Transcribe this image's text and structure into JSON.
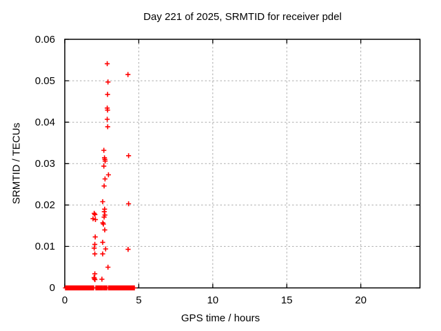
{
  "figure": {
    "background": "#ffffff"
  },
  "chart_data": {
    "type": "scatter",
    "title": "Day 221 of 2025, SRMTID for receiver pdel",
    "xlabel": "GPS time / hours",
    "ylabel": "SRMTID / TECUs",
    "xlim": [
      0,
      24
    ],
    "ylim": [
      0,
      0.06
    ],
    "xticks": [
      0,
      5,
      10,
      15,
      20
    ],
    "yticks": [
      0,
      0.01,
      0.02,
      0.03,
      0.04,
      0.05,
      0.06
    ],
    "grid": true,
    "grid_color": "#ababab",
    "border_color": "#000000",
    "marker": "plus",
    "marker_color": "#ff0000",
    "legend": "none",
    "series": [
      {
        "name": "SRMTID",
        "points": [
          [
            2.87,
            0.0541
          ],
          [
            4.27,
            0.0515
          ],
          [
            2.92,
            0.0497
          ],
          [
            2.89,
            0.0467
          ],
          [
            2.87,
            0.0434
          ],
          [
            2.89,
            0.0429
          ],
          [
            2.87,
            0.0407
          ],
          [
            2.9,
            0.0389
          ],
          [
            2.64,
            0.0332
          ],
          [
            4.31,
            0.0319
          ],
          [
            2.68,
            0.0314
          ],
          [
            2.71,
            0.031
          ],
          [
            2.73,
            0.0306
          ],
          [
            2.64,
            0.0294
          ],
          [
            2.95,
            0.0273
          ],
          [
            2.72,
            0.0263
          ],
          [
            2.66,
            0.0246
          ],
          [
            2.56,
            0.0208
          ],
          [
            4.31,
            0.0203
          ],
          [
            2.69,
            0.019
          ],
          [
            2.67,
            0.0184
          ],
          [
            1.99,
            0.018
          ],
          [
            2.04,
            0.0177
          ],
          [
            2.71,
            0.0176
          ],
          [
            2.66,
            0.0171
          ],
          [
            1.91,
            0.0167
          ],
          [
            2.07,
            0.0165
          ],
          [
            2.57,
            0.0157
          ],
          [
            2.61,
            0.0154
          ],
          [
            2.7,
            0.014
          ],
          [
            2.06,
            0.0123
          ],
          [
            2.56,
            0.011
          ],
          [
            2.03,
            0.0105
          ],
          [
            1.99,
            0.0096
          ],
          [
            2.76,
            0.0094
          ],
          [
            4.28,
            0.0093
          ],
          [
            2.03,
            0.0082
          ],
          [
            2.56,
            0.0082
          ],
          [
            2.92,
            0.005
          ],
          [
            2.03,
            0.0034
          ],
          [
            1.98,
            0.0025
          ],
          [
            2.0,
            0.0022
          ],
          [
            2.51,
            0.0021
          ],
          [
            2.04,
            0.002
          ]
        ]
      }
    ],
    "zero_band_y": 0,
    "zero_band_segments": [
      [
        0.05,
        1.95
      ],
      [
        2.1,
        2.55
      ],
      [
        2.63,
        2.84
      ],
      [
        2.95,
        4.7
      ]
    ]
  }
}
